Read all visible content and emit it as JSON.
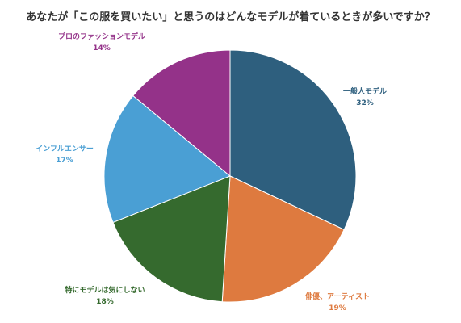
{
  "chart_data": {
    "type": "pie",
    "title": "あなたが「この服を買いたい」と思うのはどんなモデルが着ているときが多いですか？",
    "slices": [
      {
        "label": "一般人モデル",
        "value": 32,
        "display": "32%",
        "color": "#2e5f7e"
      },
      {
        "label": "俳優、アーティスト",
        "value": 19,
        "display": "19%",
        "color": "#de7a3f"
      },
      {
        "label": "特にモデルは気にしない",
        "value": 18,
        "display": "18%",
        "color": "#356a2e"
      },
      {
        "label": "インフルエンサー",
        "value": 17,
        "display": "17%",
        "color": "#4a9fd4"
      },
      {
        "label": "プロのファッションモデル",
        "value": 14,
        "display": "14%",
        "color": "#943289"
      }
    ],
    "legend": "none",
    "start_angle_deg": 0,
    "direction": "clockwise"
  }
}
